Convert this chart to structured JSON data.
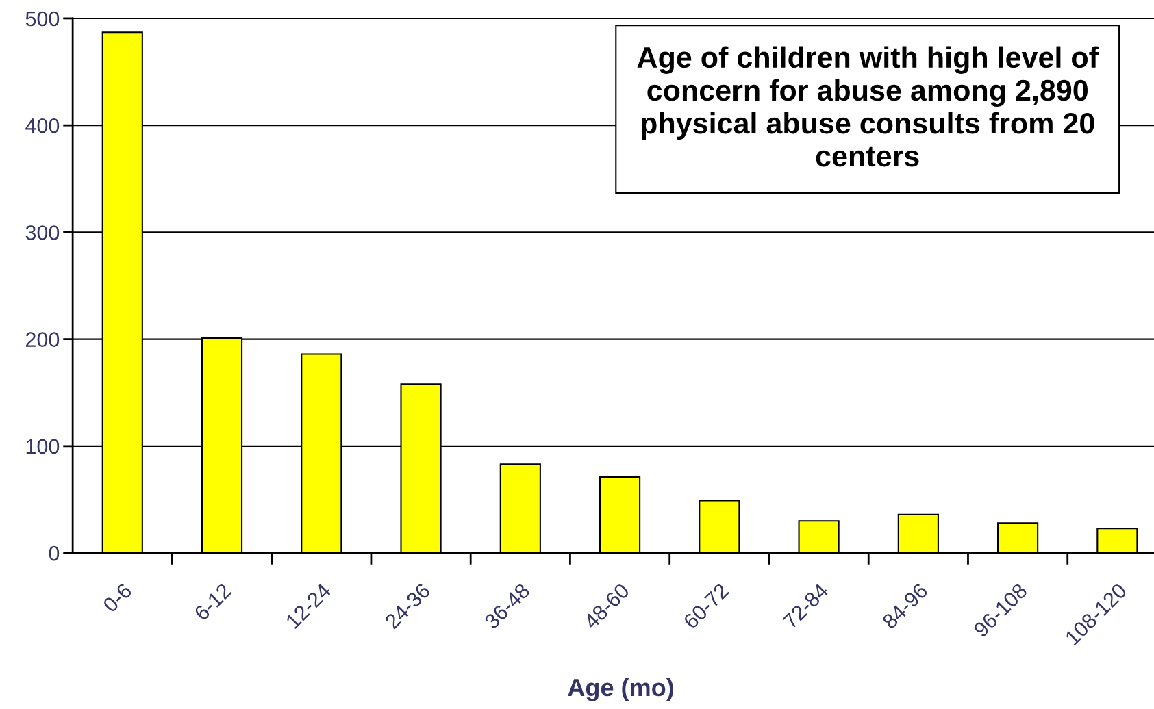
{
  "chart_data": {
    "type": "bar",
    "title": "Age of children with high level of\nconcern for abuse among 2,890\nphysical abuse consults from 20\ncenters",
    "xlabel": "Age (mo)",
    "categories": [
      "0-6",
      "6-12",
      "12-24",
      "24-36",
      "36-48",
      "48-60",
      "60-72",
      "72-84",
      "84-96",
      "96-108",
      "108-120"
    ],
    "values": [
      487,
      201,
      186,
      158,
      83,
      71,
      49,
      30,
      36,
      28,
      23
    ],
    "color": "#ffff00",
    "ylim": [
      0,
      500
    ],
    "yticks": [
      0,
      100,
      200,
      300,
      400,
      500
    ],
    "grid": "y"
  }
}
